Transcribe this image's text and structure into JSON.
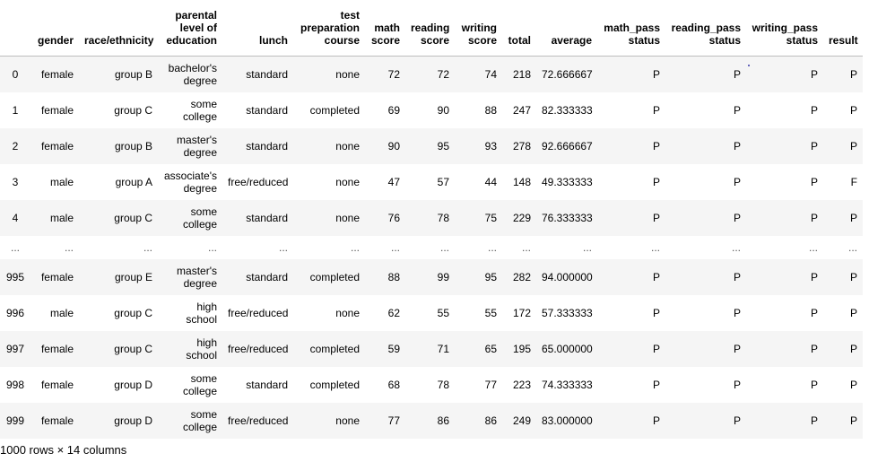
{
  "table": {
    "columns": [
      "",
      "gender",
      "race/ethnicity",
      "parental level of education",
      "lunch",
      "test preparation course",
      "math score",
      "reading score",
      "writing score",
      "total",
      "average",
      "math_pass status",
      "reading_pass status",
      "writing_pass status",
      "result"
    ],
    "rows": [
      [
        "0",
        "female",
        "group B",
        "bachelor's degree",
        "standard",
        "none",
        "72",
        "72",
        "74",
        "218",
        "72.666667",
        "P",
        "P",
        "P",
        "P"
      ],
      [
        "1",
        "female",
        "group C",
        "some college",
        "standard",
        "completed",
        "69",
        "90",
        "88",
        "247",
        "82.333333",
        "P",
        "P",
        "P",
        "P"
      ],
      [
        "2",
        "female",
        "group B",
        "master's degree",
        "standard",
        "none",
        "90",
        "95",
        "93",
        "278",
        "92.666667",
        "P",
        "P",
        "P",
        "P"
      ],
      [
        "3",
        "male",
        "group A",
        "associate's degree",
        "free/reduced",
        "none",
        "47",
        "57",
        "44",
        "148",
        "49.333333",
        "P",
        "P",
        "P",
        "F"
      ],
      [
        "4",
        "male",
        "group C",
        "some college",
        "standard",
        "none",
        "76",
        "78",
        "75",
        "229",
        "76.333333",
        "P",
        "P",
        "P",
        "P"
      ],
      [
        "...",
        "...",
        "...",
        "...",
        "...",
        "...",
        "...",
        "...",
        "...",
        "...",
        "...",
        "...",
        "...",
        "...",
        "..."
      ],
      [
        "995",
        "female",
        "group E",
        "master's degree",
        "standard",
        "completed",
        "88",
        "99",
        "95",
        "282",
        "94.000000",
        "P",
        "P",
        "P",
        "P"
      ],
      [
        "996",
        "male",
        "group C",
        "high school",
        "free/reduced",
        "none",
        "62",
        "55",
        "55",
        "172",
        "57.333333",
        "P",
        "P",
        "P",
        "P"
      ],
      [
        "997",
        "female",
        "group C",
        "high school",
        "free/reduced",
        "completed",
        "59",
        "71",
        "65",
        "195",
        "65.000000",
        "P",
        "P",
        "P",
        "P"
      ],
      [
        "998",
        "female",
        "group D",
        "some college",
        "standard",
        "completed",
        "68",
        "78",
        "77",
        "223",
        "74.333333",
        "P",
        "P",
        "P",
        "P"
      ],
      [
        "999",
        "female",
        "group D",
        "some college",
        "free/reduced",
        "none",
        "77",
        "86",
        "86",
        "249",
        "83.000000",
        "P",
        "P",
        "P",
        "P"
      ]
    ]
  },
  "footer": {
    "shape_text": "1000 rows × 14 columns"
  },
  "colors": {
    "stripe": "#f5f5f5",
    "header_border": "#bdbdbd"
  }
}
